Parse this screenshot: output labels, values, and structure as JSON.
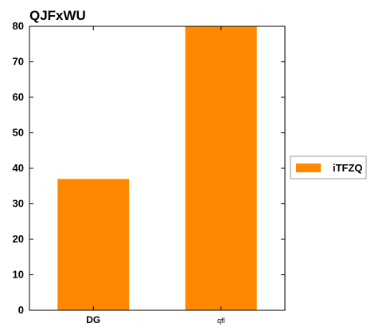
{
  "chart_data": {
    "type": "bar",
    "title": "QJFxWU",
    "categories": [
      "DG",
      "qfl"
    ],
    "series": [
      {
        "name": "iTFZQ",
        "values": [
          37,
          80
        ]
      }
    ],
    "ylim": [
      0,
      80
    ],
    "yticks": [
      0,
      10,
      20,
      30,
      40,
      50,
      60,
      70,
      80
    ],
    "grid": false,
    "legend_position": "right",
    "colors": {
      "bar": "#ff8800",
      "axis": "#000000"
    }
  }
}
